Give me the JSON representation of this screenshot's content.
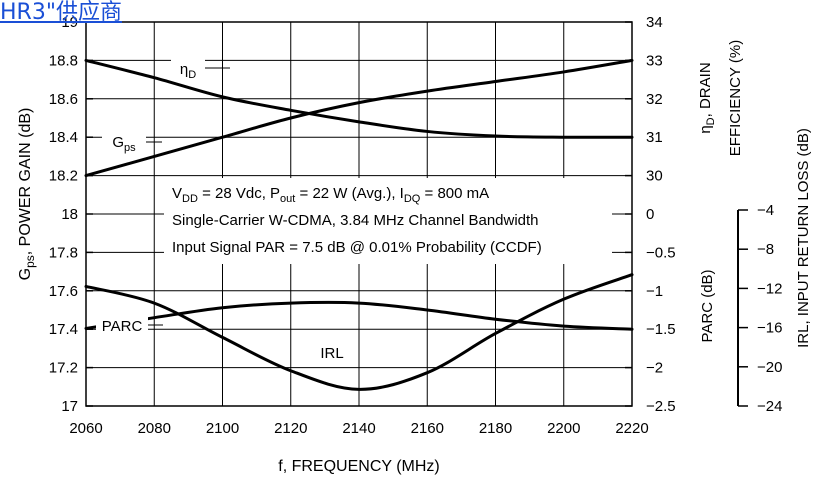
{
  "watermark": {
    "text": "HR3\"供应商"
  },
  "chart_data": {
    "type": "line",
    "x": [
      2060,
      2080,
      2100,
      2120,
      2140,
      2160,
      2180,
      2200,
      2220
    ],
    "xlabel": "f, FREQUENCY (MHz)",
    "xlim": [
      2060,
      2220
    ],
    "x_ticks": [
      "2060",
      "2080",
      "2100",
      "2120",
      "2140",
      "2160",
      "2180",
      "2200",
      "2220"
    ],
    "left_axis": {
      "label_main": "G",
      "label_sub": "ps",
      "label_rest": ", POWER GAIN (dB)",
      "ylim": [
        17,
        19
      ],
      "ticks": [
        "17",
        "17.2",
        "17.4",
        "17.6",
        "17.8",
        "18",
        "18.2",
        "18.4",
        "18.6",
        "18.8",
        "19"
      ],
      "tick_values": [
        17,
        17.2,
        17.4,
        17.6,
        17.8,
        18,
        18.2,
        18.4,
        18.6,
        18.8,
        19
      ]
    },
    "right_axis_eta": {
      "ticks": [
        "30",
        "31",
        "32",
        "33",
        "34"
      ],
      "tick_values": [
        30,
        31,
        32,
        33,
        34
      ],
      "label_line1_main": "η",
      "label_line1_sub": "D",
      "label_line1_rest": ", DRAIN",
      "label_line2": "EFFICIENCY (%)"
    },
    "right_axis_parc": {
      "ticks": [
        "0",
        "−0.5",
        "−1",
        "−1.5",
        "−2",
        "−2.5"
      ],
      "tick_values": [
        0,
        -0.5,
        -1,
        -1.5,
        -2,
        -2.5
      ],
      "label": "PARC (dB)"
    },
    "right_axis_irl": {
      "ticks": [
        "−4",
        "−8",
        "−12",
        "−16",
        "−20",
        "−24"
      ],
      "tick_values": [
        -4,
        -8,
        -12,
        -16,
        -20,
        -24
      ],
      "label": "IRL, INPUT RETURN LOSS (dB)"
    },
    "series": [
      {
        "name": "Gps",
        "label_main": "G",
        "label_sub": "ps",
        "axis": "left",
        "values": [
          18.2,
          18.3,
          18.4,
          18.5,
          18.58,
          18.64,
          18.69,
          18.74,
          18.8
        ]
      },
      {
        "name": "ηD",
        "label_main": "η",
        "label_sub": "D",
        "axis": "eta",
        "values": [
          33.0,
          32.55,
          32.05,
          31.7,
          31.4,
          31.15,
          31.03,
          31.0,
          31.0
        ]
      },
      {
        "name": "PARC",
        "label_main": "PARC",
        "axis": "parc",
        "values": [
          -1.49,
          -1.35,
          -1.22,
          -1.16,
          -1.16,
          -1.25,
          -1.37,
          -1.46,
          -1.5
        ]
      },
      {
        "name": "IRL",
        "label_main": "IRL",
        "axis": "irl",
        "values": [
          -11.8,
          -13.5,
          -17.0,
          -20.4,
          -22.3,
          -20.6,
          -16.6,
          -13.1,
          -10.6
        ]
      }
    ],
    "annotation": {
      "line1": {
        "p1": "V",
        "s1": "DD",
        "p2": " = 28 Vdc, P",
        "s2": "out",
        "p3": " = 22 W (Avg.), I",
        "s3": "DQ",
        "p4": " = 800 mA"
      },
      "line2": "Single-Carrier W-CDMA, 3.84 MHz Channel Bandwidth",
      "line3": "Input Signal PAR = 7.5 dB @ 0.01% Probability (CCDF)"
    },
    "grid": true
  }
}
